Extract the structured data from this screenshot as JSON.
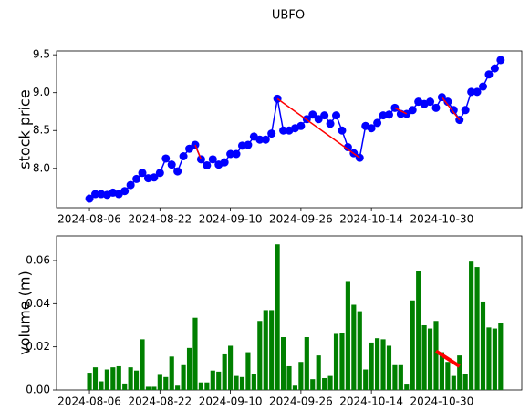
{
  "chart_data": [
    {
      "type": "line",
      "title": "UBFO",
      "ylabel": "stock price",
      "ylabel_color": "#0000ff",
      "categories": [
        "2024-08-06",
        null,
        null,
        null,
        null,
        null,
        null,
        null,
        null,
        null,
        null,
        null,
        "2024-08-22",
        null,
        null,
        null,
        null,
        null,
        null,
        null,
        null,
        null,
        null,
        null,
        "2024-09-10",
        null,
        null,
        null,
        null,
        null,
        null,
        null,
        null,
        null,
        null,
        null,
        "2024-09-26",
        null,
        null,
        null,
        null,
        null,
        null,
        null,
        null,
        null,
        null,
        null,
        "2024-10-14",
        null,
        null,
        null,
        null,
        null,
        null,
        null,
        null,
        null,
        null,
        null,
        "2024-10-30",
        null,
        null,
        null,
        null,
        null,
        null,
        null,
        null,
        null,
        null
      ],
      "xlim": [
        -5.6,
        73.6
      ],
      "ylim": [
        7.48,
        9.55
      ],
      "yticks": [
        {
          "value": 8,
          "label": "8.0"
        },
        8.5,
        {
          "value": 9,
          "label": "9.0"
        },
        9.5
      ],
      "series": [
        {
          "color": "#0000ff",
          "marker": true,
          "values": [
            7.6,
            7.66,
            7.66,
            7.65,
            7.68,
            7.66,
            7.7,
            7.78,
            7.86,
            7.94,
            7.87,
            7.88,
            7.94,
            8.13,
            8.05,
            7.96,
            8.16,
            8.26,
            8.31,
            8.12,
            8.04,
            8.12,
            8.05,
            8.08,
            8.19,
            8.19,
            8.3,
            8.31,
            8.42,
            8.38,
            8.38,
            8.46,
            8.92,
            8.5,
            8.5,
            8.53,
            8.56,
            8.65,
            8.71,
            8.65,
            8.7,
            8.59,
            8.7,
            8.5,
            8.28,
            8.2,
            8.14,
            8.56,
            8.53,
            8.6,
            8.7,
            8.71,
            8.8,
            8.72,
            8.72,
            8.77,
            8.88,
            8.85,
            8.88,
            8.8,
            8.94,
            8.88,
            8.77,
            8.64,
            8.77,
            9.01,
            9.01,
            9.08,
            9.24,
            9.32,
            9.43
          ]
        },
        {
          "color": "#ff0000",
          "marker": false,
          "x": [
            18,
            19,
            null,
            32,
            46,
            null,
            52,
            54,
            null,
            60,
            63
          ],
          "values": [
            8.31,
            8.12,
            null,
            8.92,
            8.14,
            null,
            8.8,
            8.72,
            null,
            8.94,
            8.64
          ]
        }
      ]
    },
    {
      "type": "bar",
      "ylabel": "volume (m)",
      "ylabel_color": "#008000",
      "categories": [
        "2024-08-06",
        null,
        null,
        null,
        null,
        null,
        null,
        null,
        null,
        null,
        null,
        null,
        "2024-08-22",
        null,
        null,
        null,
        null,
        null,
        null,
        null,
        null,
        null,
        null,
        null,
        "2024-09-10",
        null,
        null,
        null,
        null,
        null,
        null,
        null,
        null,
        null,
        null,
        null,
        "2024-09-26",
        null,
        null,
        null,
        null,
        null,
        null,
        null,
        null,
        null,
        null,
        null,
        "2024-10-14",
        null,
        null,
        null,
        null,
        null,
        null,
        null,
        null,
        null,
        null,
        null,
        "2024-10-30",
        null,
        null,
        null,
        null,
        null,
        null,
        null,
        null,
        null,
        null
      ],
      "xlim": [
        -5.6,
        73.6
      ],
      "ylim": [
        0,
        0.0714
      ],
      "yticks": [
        {
          "value": 0,
          "label": "0.00"
        },
        {
          "value": 0.02,
          "label": "0.02"
        },
        {
          "value": 0.04,
          "label": "0.04"
        },
        {
          "value": 0.06,
          "label": "0.06"
        }
      ],
      "color": "#008000",
      "values": [
        0.008,
        0.0105,
        0.004,
        0.0095,
        0.0105,
        0.011,
        0.003,
        0.0105,
        0.009,
        0.0235,
        0.0015,
        0.0015,
        0.007,
        0.006,
        0.0155,
        0.002,
        0.0115,
        0.0195,
        0.0335,
        0.0035,
        0.0035,
        0.009,
        0.0085,
        0.0165,
        0.0205,
        0.0065,
        0.006,
        0.0175,
        0.0075,
        0.032,
        0.037,
        0.037,
        0.0675,
        0.0245,
        0.011,
        0.002,
        0.013,
        0.0245,
        0.005,
        0.016,
        0.0055,
        0.0065,
        0.026,
        0.0265,
        0.0505,
        0.0395,
        0.0365,
        0.0095,
        0.022,
        0.024,
        0.0235,
        0.0205,
        0.0115,
        0.0115,
        0.0025,
        0.0415,
        0.055,
        0.03,
        0.0285,
        0.032,
        0.0175,
        0.013,
        0.0065,
        0.016,
        0.0075,
        0.0595,
        0.057,
        0.041,
        0.029,
        0.0285,
        0.031
      ],
      "series": [
        {
          "color": "#ff0000",
          "x": [
            59,
            63
          ],
          "values": [
            0.018,
            0.011
          ]
        }
      ]
    }
  ]
}
